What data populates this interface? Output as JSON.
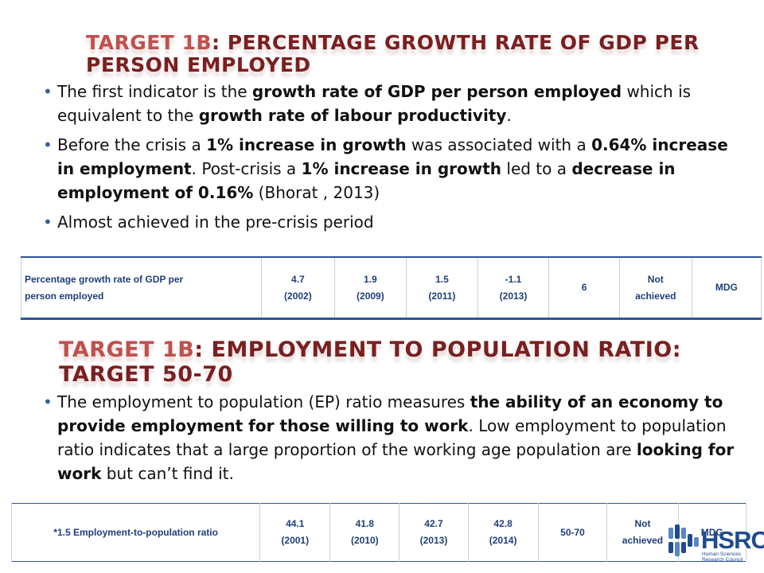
{
  "slide": {
    "title1": {
      "accent": "Target 1B",
      "rest": ": Percentage growth rate of GDP per person employed"
    },
    "bullets1": [
      {
        "parts": [
          {
            "t": "The first indicator is the ",
            "b": false
          },
          {
            "t": "growth rate of GDP per person employed",
            "b": true
          },
          {
            "t": " which is equivalent to the ",
            "b": false
          },
          {
            "t": "growth rate of labour productivity",
            "b": true
          },
          {
            "t": ".",
            "b": false
          }
        ]
      },
      {
        "parts": [
          {
            "t": "Before the crisis a ",
            "b": false
          },
          {
            "t": "1% increase in growth",
            "b": true
          },
          {
            "t": " was associated with a ",
            "b": false
          },
          {
            "t": "0.64% increase in employment",
            "b": true
          },
          {
            "t": ". Post-crisis a ",
            "b": false
          },
          {
            "t": "1% increase in growth",
            "b": true
          },
          {
            "t": " led to a ",
            "b": false
          },
          {
            "t": "decrease in employment of 0.16%",
            "b": true
          },
          {
            "t": " (Bhorat , 2013)",
            "b": false
          }
        ]
      },
      {
        "parts": [
          {
            "t": "Almost achieved in the pre-crisis period",
            "b": false
          }
        ]
      }
    ],
    "table1": {
      "cells": [
        {
          "lines": [
            "Percentage growth rate of GDP per",
            "person employed"
          ],
          "w": 310,
          "align": "left"
        },
        {
          "lines": [
            "4.7",
            "(2002)"
          ],
          "w": 86
        },
        {
          "lines": [
            "1.9",
            "(2009)"
          ],
          "w": 85
        },
        {
          "lines": [
            "1.5",
            "(2011)"
          ],
          "w": 84
        },
        {
          "lines": [
            "-1.1",
            "(2013)"
          ],
          "w": 84
        },
        {
          "lines": [
            "6"
          ],
          "w": 85
        },
        {
          "lines": [
            "Not",
            "achieved"
          ],
          "w": 84
        },
        {
          "lines": [
            "MDG"
          ],
          "w": 82
        }
      ]
    },
    "title2": {
      "accent": "Target 1B",
      "rest": ": Employment to population ratio: Target 50-70"
    },
    "bullets2": [
      {
        "parts": [
          {
            "t": "The employment to population (EP) ratio measures ",
            "b": false
          },
          {
            "t": "the ability of an economy to provide employment for those willing to work",
            "b": true
          },
          {
            "t": ". Low employment to population ratio indicates that a large proportion of the working age population are ",
            "b": false
          },
          {
            "t": "looking for work",
            "b": true
          },
          {
            "t": " but can’t find it.",
            "b": false
          }
        ]
      }
    ],
    "table2": {
      "cells": [
        {
          "lines": [
            "*1.5 Employment-to-population ratio"
          ],
          "w": 334
        },
        {
          "lines": [
            "44.1",
            "(2001)"
          ],
          "w": 85
        },
        {
          "lines": [
            "41.8",
            "(2010)"
          ],
          "w": 84
        },
        {
          "lines": [
            "42.7",
            "(2013)"
          ],
          "w": 83
        },
        {
          "lines": [
            "42.8",
            "(2014)"
          ],
          "w": 85
        },
        {
          "lines": [
            "50-70"
          ],
          "w": 86
        },
        {
          "lines": [
            "Not",
            "achieved"
          ],
          "w": 84
        },
        {
          "lines": [
            "MDG"
          ],
          "w": 83
        }
      ]
    },
    "logo": {
      "text": "HSRC",
      "sub": [
        "Human Sciences",
        "Research Council"
      ],
      "colors": {
        "blue": "#1f4b8f",
        "light": "#5a86c5"
      }
    },
    "colors": {
      "title": "#7a1f1f",
      "accent": "#c0504d",
      "table_text": "#1f3e7a",
      "bullet": "#3a5f9a"
    }
  }
}
